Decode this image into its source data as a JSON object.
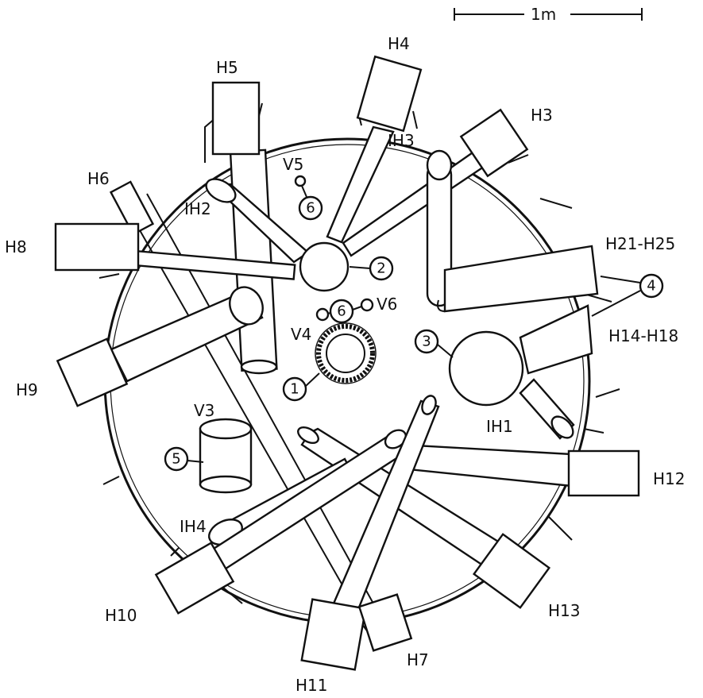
{
  "scale_bar": {
    "label": "1m"
  },
  "beam_tubes": {
    "h3": "H3",
    "h4": "H4",
    "h5": "H5",
    "h6": "H6",
    "h7": "H7",
    "h8": "H8",
    "h9": "H9",
    "h10": "H10",
    "h11": "H11",
    "h12": "H12",
    "h13": "H13",
    "h14_h18": "H14-H18",
    "h21_h25": "H21-H25"
  },
  "inclined_tubes": {
    "ih1": "IH1",
    "ih2": "IH2",
    "ih3": "IH3",
    "ih4": "IH4"
  },
  "vertical_channels": {
    "v3": "V3",
    "v4": "V4",
    "v5": "V5",
    "v6": "V6"
  },
  "callouts": {
    "c1": "1",
    "c2": "2",
    "c3": "3",
    "c4": "4",
    "c5": "5",
    "c6a": "6",
    "c6b": "6"
  },
  "colors": {
    "ink": "#111111",
    "paper": "#ffffff"
  }
}
